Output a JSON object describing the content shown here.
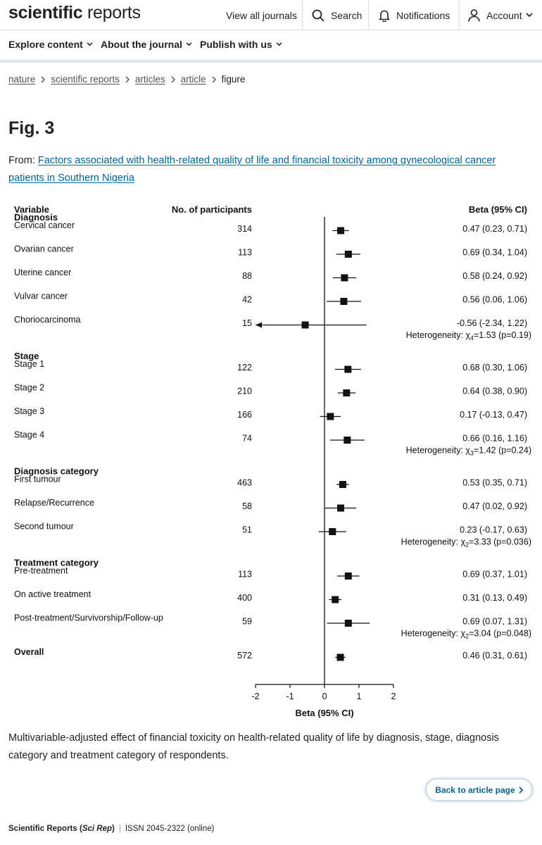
{
  "header": {
    "logo_bold": "scientific",
    "logo_light": " reports",
    "view_all": "View all journals",
    "search": "Search",
    "notifications": "Notifications",
    "account": "Account"
  },
  "nav": {
    "explore": "Explore content",
    "about": "About the journal",
    "publish": "Publish with us"
  },
  "breadcrumb": [
    "nature",
    "scientific reports",
    "articles",
    "article",
    "figure"
  ],
  "page": {
    "title": "Fig. 3",
    "from_label": "From: ",
    "from_link": "Factors associated with health-related quality of life and financial toxicity among gynecological cancer patients in Southern Nigeria",
    "caption": "Multivariable-adjusted effect of financial toxicity on health-related quality of life by diagnosis, stage, diagnosis category and treatment category of respondents.",
    "back_button": "Back to article page"
  },
  "footer": {
    "journal": "Scientific Reports (",
    "abbr": "Sci Rep",
    "close": ")",
    "sep": "|",
    "issn": "ISSN 2045-2322 (online)"
  },
  "chart_data": {
    "type": "forest",
    "col_variable": "Variable",
    "col_n": "No. of participants",
    "col_beta": "Beta (95% CI)",
    "xlabel": "Beta (95% CI)",
    "xlim": [
      -2,
      2
    ],
    "xticks": [
      -2,
      -1,
      0,
      1,
      2
    ],
    "groups": [
      {
        "name": "Diagnosis",
        "rows": [
          {
            "label": "Cervical cancer",
            "n": "314",
            "beta": 0.47,
            "lo": 0.23,
            "hi": 0.71,
            "text": "0.47 (0.23, 0.71)"
          },
          {
            "label": "Ovarian cancer",
            "n": "113",
            "beta": 0.69,
            "lo": 0.34,
            "hi": 1.04,
            "text": "0.69 (0.34, 1.04)"
          },
          {
            "label": "Uterine cancer",
            "n": "88",
            "beta": 0.58,
            "lo": 0.24,
            "hi": 0.92,
            "text": "0.58 (0.24, 0.92)"
          },
          {
            "label": "Vulvar cancer",
            "n": "42",
            "beta": 0.56,
            "lo": 0.06,
            "hi": 1.06,
            "text": "0.56 (0.06, 1.06)"
          },
          {
            "label": "Choriocarcinoma",
            "n": "15",
            "beta": -0.56,
            "lo": -2.34,
            "hi": 1.22,
            "text": "-0.56 (-2.34, 1.22)",
            "arrow_left": true
          }
        ],
        "het_prefix": "Heterogeneity: ",
        "het_chi": "χ",
        "het_df": "4",
        "het_rest": "=1.53 (p=0.19)"
      },
      {
        "name": "Stage",
        "rows": [
          {
            "label": "Stage 1",
            "n": "122",
            "beta": 0.68,
            "lo": 0.3,
            "hi": 1.06,
            "text": "0.68 (0.30, 1.06)"
          },
          {
            "label": "Stage 2",
            "n": "210",
            "beta": 0.64,
            "lo": 0.38,
            "hi": 0.9,
            "text": "0.64 (0.38, 0.90)"
          },
          {
            "label": "Stage 3",
            "n": "166",
            "beta": 0.17,
            "lo": -0.13,
            "hi": 0.47,
            "text": "0.17 (-0.13, 0.47)"
          },
          {
            "label": "Stage 4",
            "n": "74",
            "beta": 0.66,
            "lo": 0.16,
            "hi": 1.16,
            "text": "0.66 (0.16, 1.16)"
          }
        ],
        "het_prefix": "Heterogeneity: ",
        "het_chi": "χ",
        "het_df": "3",
        "het_rest": "=1.42 (p=0.24)"
      },
      {
        "name": "Diagnosis category",
        "rows": [
          {
            "label": "First tumour",
            "n": "463",
            "beta": 0.53,
            "lo": 0.35,
            "hi": 0.71,
            "text": "0.53 (0.35, 0.71)"
          },
          {
            "label": "Relapse/Recurrence",
            "n": "58",
            "beta": 0.47,
            "lo": 0.02,
            "hi": 0.92,
            "text": "0.47 (0.02, 0.92)"
          },
          {
            "label": "Second tumour",
            "n": "51",
            "beta": 0.23,
            "lo": -0.17,
            "hi": 0.63,
            "text": "0.23 (-0.17, 0.63)"
          }
        ],
        "het_prefix": "Heterogeneity: ",
        "het_chi": "χ",
        "het_df": "2",
        "het_rest": "=3.33 (p=0.036)"
      },
      {
        "name": "Treatment category",
        "rows": [
          {
            "label": "Pre-treatment",
            "n": "113",
            "beta": 0.69,
            "lo": 0.37,
            "hi": 1.01,
            "text": "0.69 (0.37, 1.01)"
          },
          {
            "label": "On active treatment",
            "n": "400",
            "beta": 0.31,
            "lo": 0.13,
            "hi": 0.49,
            "text": "0.31 (0.13, 0.49)"
          },
          {
            "label": "Post-treatment/Survivorship/Follow-up",
            "n": "59",
            "beta": 0.69,
            "lo": 0.07,
            "hi": 1.31,
            "text": "0.69 (0.07, 1.31)"
          }
        ],
        "het_prefix": "Heterogeneity: ",
        "het_chi": "χ",
        "het_df": "2",
        "het_rest": "=3.04 (p=0.048)"
      }
    ],
    "overall": {
      "label": "Overall",
      "n": "572",
      "beta": 0.46,
      "lo": 0.31,
      "hi": 0.61,
      "text": "0.46 (0.31, 0.61)"
    }
  }
}
